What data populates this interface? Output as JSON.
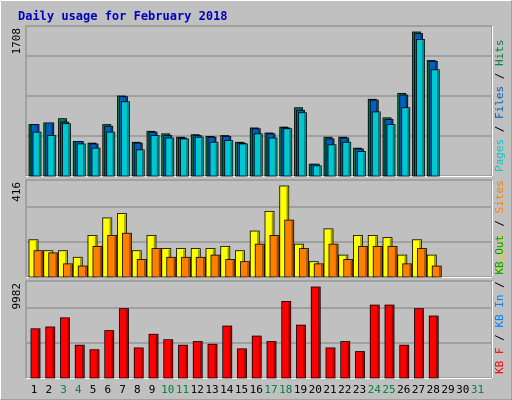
{
  "chart_data": {
    "type": "bar",
    "title": "Daily usage for February 2018",
    "categories": [
      "1",
      "2",
      "3",
      "4",
      "5",
      "6",
      "7",
      "8",
      "9",
      "10",
      "11",
      "12",
      "13",
      "14",
      "15",
      "16",
      "17",
      "18",
      "19",
      "20",
      "21",
      "22",
      "23",
      "24",
      "25",
      "26",
      "27",
      "28",
      "29",
      "30",
      "31"
    ],
    "weekend_days": [
      "3",
      "4",
      "10",
      "11",
      "17",
      "18",
      "24",
      "25",
      "31"
    ],
    "panels": [
      {
        "id": "hits-panel",
        "max_label": "1708",
        "ymax": 1708,
        "legend": [
          {
            "text": "Pages",
            "color": "#00c8d0"
          },
          {
            "text": " / ",
            "color": "#000000"
          },
          {
            "text": "Files",
            "color": "#0060c0"
          },
          {
            "text": " / ",
            "color": "#000000"
          },
          {
            "text": "Hits",
            "color": "#008040"
          }
        ],
        "series": [
          {
            "name": "Hits",
            "color": "#008040",
            "values": [
              610,
              630,
              680,
              410,
              390,
              610,
              950,
              400,
              530,
              500,
              460,
              490,
              470,
              480,
              400,
              570,
              510,
              580,
              810,
              140,
              460,
              460,
              330,
              910,
              690,
              980,
              1708,
              1370,
              0,
              0,
              0
            ]
          },
          {
            "name": "Files",
            "color": "#0060c0",
            "values": [
              610,
              630,
              640,
              410,
              380,
              590,
              940,
              390,
              520,
              480,
              450,
              480,
              460,
              470,
              390,
              560,
              500,
              570,
              780,
              140,
              440,
              450,
              320,
              900,
              670,
              960,
              1690,
              1360,
              0,
              0,
              0
            ]
          },
          {
            "name": "Pages",
            "color": "#00c8d0",
            "values": [
              520,
              480,
              620,
              380,
              330,
              520,
              880,
              310,
              480,
              450,
              440,
              460,
              400,
              420,
              380,
              500,
              450,
              560,
              750,
              120,
              370,
              400,
              290,
              760,
              610,
              810,
              1620,
              1260,
              0,
              0,
              0
            ]
          }
        ]
      },
      {
        "id": "visits-panel",
        "max_label": "416",
        "ymax": 416,
        "legend": [
          {
            "text": "Visits",
            "color": "#e8d800"
          },
          {
            "text": " / ",
            "color": "#000000"
          },
          {
            "text": "Sites",
            "color": "#ff8000"
          }
        ],
        "series": [
          {
            "name": "Visits",
            "color": "#ffff00",
            "values": [
              170,
              120,
              120,
              90,
              190,
              270,
              290,
              120,
              190,
              130,
              130,
              130,
              130,
              140,
              120,
              210,
              300,
              416,
              150,
              70,
              220,
              100,
              190,
              190,
              180,
              100,
              170,
              100,
              0,
              0,
              0
            ]
          },
          {
            "name": "Sites",
            "color": "#ff8000",
            "values": [
              120,
              110,
              60,
              50,
              140,
              190,
              200,
              80,
              130,
              90,
              90,
              90,
              100,
              80,
              70,
              150,
              190,
              260,
              130,
              60,
              150,
              80,
              140,
              140,
              140,
              60,
              130,
              50,
              0,
              0,
              0
            ]
          }
        ]
      },
      {
        "id": "kbytes-panel",
        "max_label": "9982",
        "ymax": 9982,
        "legend": [
          {
            "text": "KB F",
            "color": "#ff0000"
          },
          {
            "text": " / ",
            "color": "#000000"
          },
          {
            "text": "KB In",
            "color": "#0080ff"
          },
          {
            "text": " / ",
            "color": "#000000"
          },
          {
            "text": "KB Out",
            "color": "#00a000"
          }
        ],
        "series": [
          {
            "name": "KB F",
            "color": "#ff0000",
            "values": [
              5400,
              5600,
              6600,
              3600,
              3100,
              5200,
              7600,
              3300,
              4800,
              4200,
              3600,
              4000,
              3700,
              5700,
              3200,
              4600,
              4000,
              8400,
              5800,
              9982,
              3300,
              4000,
              2900,
              8000,
              8000,
              3600,
              7600,
              6800,
              0,
              0,
              0
            ]
          }
        ]
      }
    ]
  }
}
